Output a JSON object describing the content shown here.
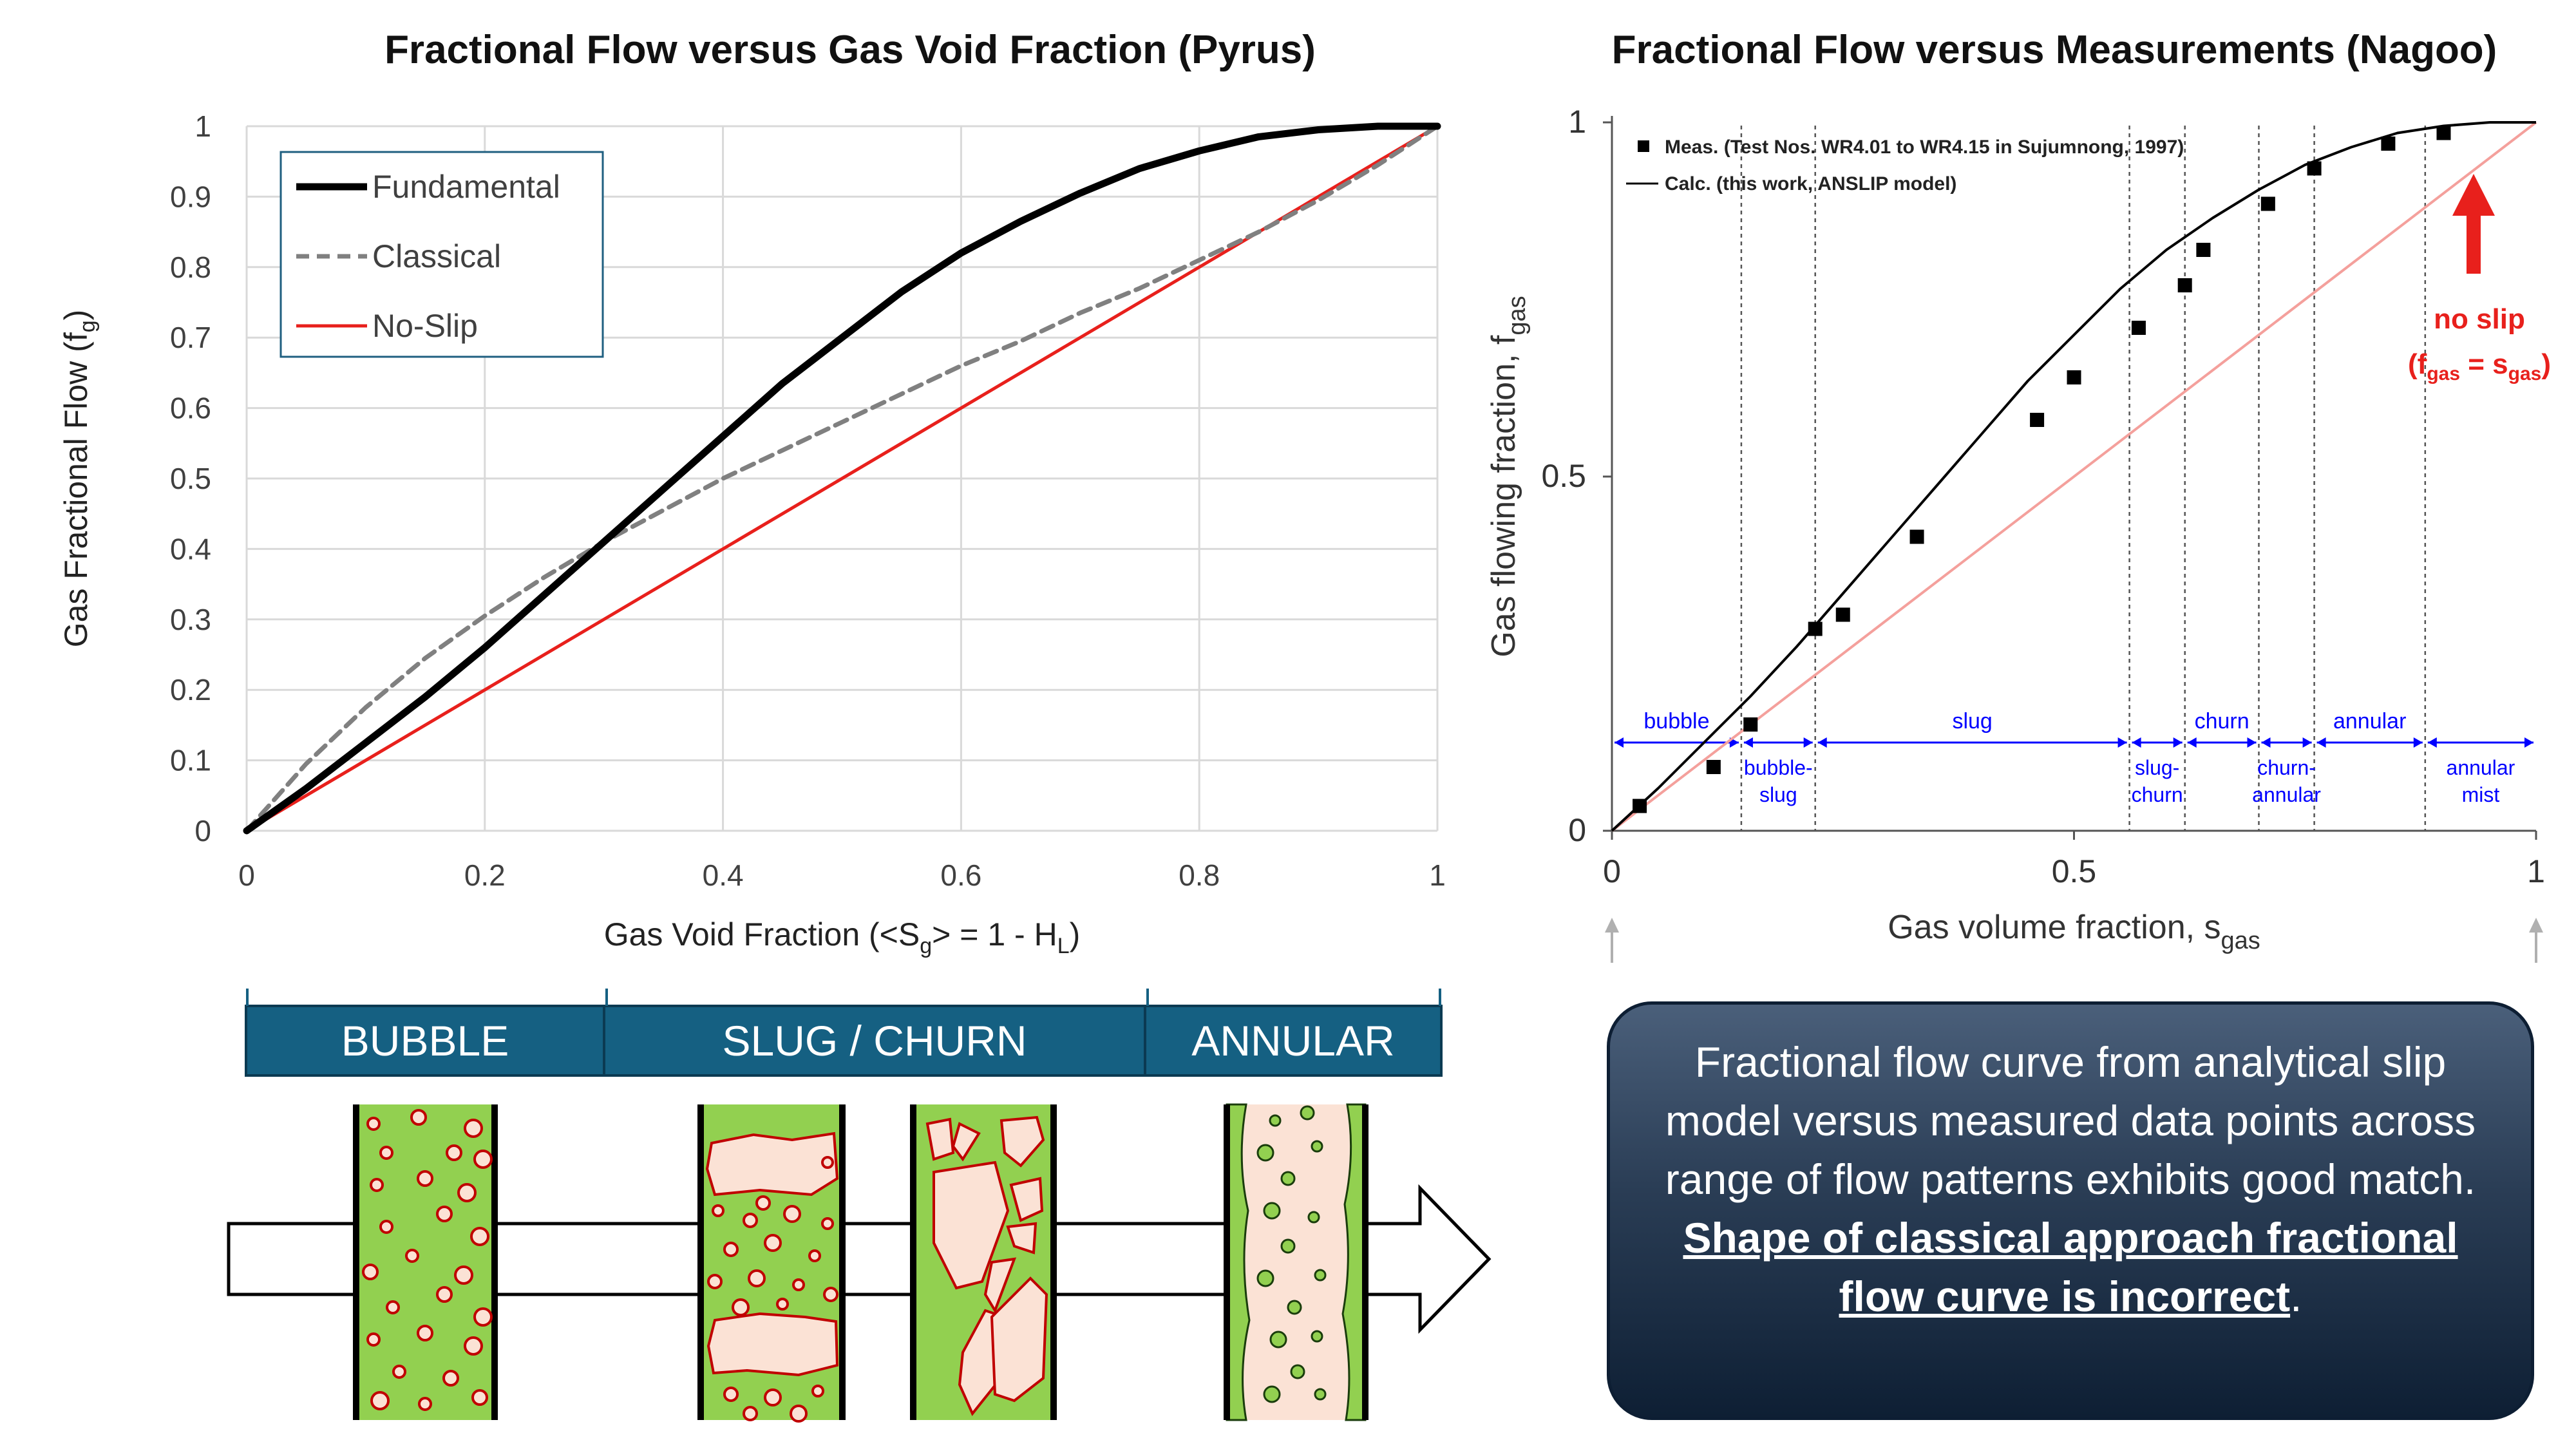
{
  "left_chart": {
    "title": "Fractional Flow versus Gas Void Fraction (Pyrus)",
    "chart_data": {
      "type": "line",
      "title": "Fractional Flow versus Gas Void Fraction (Pyrus)",
      "xlabel": "Gas Void Fraction (<Sg> = 1 - HL)",
      "ylabel": "Gas Fractional Flow (fg)",
      "xlim": [
        0,
        1
      ],
      "ylim": [
        0,
        1
      ],
      "x_ticks": [
        "0",
        "0.2",
        "0.4",
        "0.6",
        "0.8",
        "1"
      ],
      "y_ticks": [
        "0",
        "0.1",
        "0.2",
        "0.3",
        "0.4",
        "0.5",
        "0.6",
        "0.7",
        "0.8",
        "0.9",
        "1"
      ],
      "grid": "horizontal and vertical",
      "legend_position": "top-left",
      "series": [
        {
          "name": "Fundamental",
          "color": "#000000",
          "style": "solid-thick",
          "x": [
            0,
            0.05,
            0.1,
            0.15,
            0.2,
            0.25,
            0.3,
            0.35,
            0.4,
            0.45,
            0.5,
            0.55,
            0.6,
            0.65,
            0.7,
            0.75,
            0.8,
            0.85,
            0.9,
            0.95,
            1.0
          ],
          "y": [
            0,
            0.06,
            0.125,
            0.19,
            0.26,
            0.335,
            0.41,
            0.485,
            0.56,
            0.635,
            0.7,
            0.765,
            0.82,
            0.865,
            0.905,
            0.94,
            0.965,
            0.985,
            0.995,
            1.0,
            1.0
          ]
        },
        {
          "name": "Classical",
          "color": "#808080",
          "style": "dashed",
          "x": [
            0,
            0.05,
            0.1,
            0.15,
            0.2,
            0.25,
            0.3,
            0.35,
            0.4,
            0.45,
            0.5,
            0.55,
            0.6,
            0.65,
            0.7,
            0.75,
            0.8,
            0.85,
            0.9,
            0.95,
            1.0
          ],
          "y": [
            0,
            0.095,
            0.175,
            0.245,
            0.305,
            0.36,
            0.41,
            0.455,
            0.5,
            0.54,
            0.58,
            0.62,
            0.66,
            0.695,
            0.735,
            0.77,
            0.81,
            0.85,
            0.895,
            0.945,
            1.0
          ]
        },
        {
          "name": "No-Slip",
          "color": "#e8201c",
          "style": "solid",
          "x": [
            0,
            1
          ],
          "y": [
            0,
            1
          ]
        }
      ]
    },
    "flow_regimes": [
      "BUBBLE",
      "SLUG / CHURN",
      "ANNULAR"
    ]
  },
  "right_chart": {
    "title": "Fractional Flow versus Measurements (Nagoo)",
    "chart_data": {
      "type": "scatter",
      "title": "Fractional Flow versus Measurements (Nagoo)",
      "xlabel": "Gas volume fraction, sgas",
      "ylabel": "Gas flowing fraction, fgas",
      "xlim": [
        0,
        1
      ],
      "ylim": [
        0,
        1
      ],
      "x_ticks": [
        "0",
        "0.5",
        "1"
      ],
      "y_ticks": [
        "0",
        "0.5",
        "1"
      ],
      "legend_position": "top-left",
      "legend": [
        "Meas. (Test Nos. WR4.01 to WR4.15 in Sujumnong, 1997)",
        "Calc. (this work, ANSLIP model)"
      ],
      "series": [
        {
          "name": "Meas. (Test Nos. WR4.01 to WR4.15 in Sujumnong, 1997)",
          "color": "#000000",
          "marker": "square",
          "x": [
            0.03,
            0.11,
            0.15,
            0.22,
            0.25,
            0.33,
            0.46,
            0.5,
            0.57,
            0.62,
            0.64,
            0.71,
            0.76,
            0.84,
            0.9
          ],
          "y": [
            0.035,
            0.09,
            0.15,
            0.285,
            0.305,
            0.415,
            0.58,
            0.64,
            0.71,
            0.77,
            0.82,
            0.885,
            0.935,
            0.97,
            0.985
          ]
        },
        {
          "name": "Calc. (this work, ANSLIP model)",
          "color": "#000000",
          "style": "solid",
          "x": [
            0,
            0.05,
            0.1,
            0.15,
            0.2,
            0.25,
            0.3,
            0.35,
            0.4,
            0.45,
            0.5,
            0.55,
            0.6,
            0.65,
            0.7,
            0.75,
            0.8,
            0.85,
            0.9,
            0.95,
            1.0
          ],
          "y": [
            0,
            0.06,
            0.125,
            0.19,
            0.26,
            0.335,
            0.41,
            0.485,
            0.56,
            0.635,
            0.7,
            0.765,
            0.82,
            0.865,
            0.905,
            0.94,
            0.965,
            0.985,
            0.995,
            1.0,
            1.0
          ]
        },
        {
          "name": "no slip (fgas = sgas)",
          "color": "#f4a09c",
          "style": "solid",
          "x": [
            0,
            1
          ],
          "y": [
            0,
            1
          ]
        }
      ],
      "regime_boundaries": [
        0.14,
        0.22,
        0.56,
        0.62,
        0.7,
        0.76,
        0.88
      ],
      "regime_labels_top": [
        {
          "label": "bubble",
          "from": 0.0,
          "to": 0.14
        },
        {
          "label": "slug",
          "from": 0.22,
          "to": 0.56
        },
        {
          "label": "churn",
          "from": 0.62,
          "to": 0.7
        },
        {
          "label": "annular",
          "from": 0.76,
          "to": 0.88
        }
      ],
      "regime_labels_bottom": [
        {
          "label": "bubble-",
          "label2": "slug",
          "from": 0.14,
          "to": 0.22
        },
        {
          "label": "slug-",
          "label2": "churn",
          "from": 0.56,
          "to": 0.62
        },
        {
          "label": "churn-",
          "label2": "annular",
          "from": 0.7,
          "to": 0.76
        },
        {
          "label": "annular",
          "label2": "mist",
          "from": 0.88,
          "to": 1.0
        }
      ],
      "annotation": {
        "line1": "no slip",
        "line2": "(fgas = sgas)",
        "color": "#e8201c"
      }
    }
  },
  "note": {
    "text": "Fractional flow curve from analytical slip model versus measured data points across range of flow patterns exhibits good match.",
    "emphasis": "Shape of classical approach fractional flow curve is incorrect",
    "end": "."
  },
  "colors": {
    "band": "#156082",
    "liquid": "#92d050",
    "gas": "#fbe2d5",
    "bubble_outline": "#c00000",
    "no_slip": "#e8201c",
    "legend_border": "#1f5f80"
  }
}
